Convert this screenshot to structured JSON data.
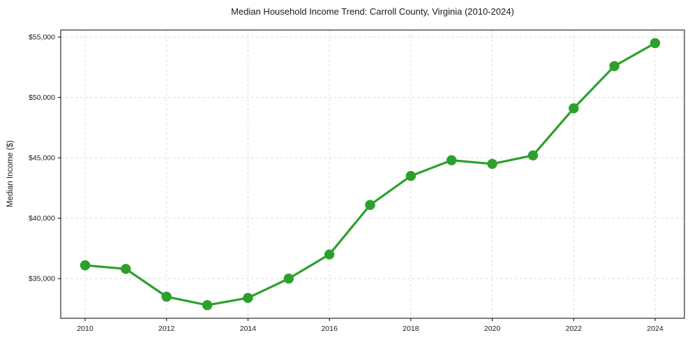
{
  "chart_data": {
    "type": "line",
    "title": "Median Household Income Trend: Carroll County, Virginia (2010-2024)",
    "xlabel": "",
    "ylabel": "Median Income ($)",
    "x": [
      2010,
      2011,
      2012,
      2013,
      2014,
      2015,
      2016,
      2017,
      2018,
      2019,
      2020,
      2021,
      2022,
      2023,
      2024
    ],
    "values": [
      36100,
      35800,
      33500,
      32800,
      33400,
      35000,
      37000,
      41100,
      43500,
      44800,
      44500,
      45200,
      49100,
      52600,
      54500
    ],
    "series_name": "Median Household Income",
    "xticks": [
      2010,
      2012,
      2014,
      2016,
      2018,
      2020,
      2022,
      2024
    ],
    "yticks": [
      35000,
      40000,
      45000,
      50000,
      55000
    ],
    "ytick_labels": [
      "$35,000",
      "$40,000",
      "$45,000",
      "$50,000",
      "$55,000"
    ],
    "xlim": [
      2009.4,
      2024.72
    ],
    "ylim": [
      31715,
      55585
    ],
    "grid": true,
    "grid_style": "dashed",
    "legend": false,
    "line_color": "#2ca02c",
    "grid_color": "#d9d9d9",
    "axis_color": "#000000",
    "background_color": "#ffffff",
    "marker": "circle"
  }
}
